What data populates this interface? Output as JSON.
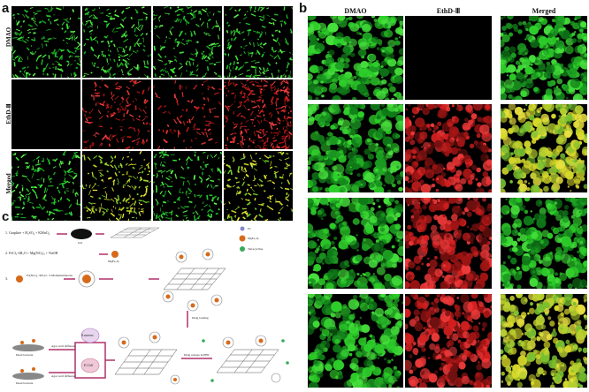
{
  "panel_a": {
    "letter": "a",
    "row_labels": [
      "DMAO",
      "EthD-Ⅲ",
      "Merged"
    ]
  },
  "panel_b": {
    "letter": "b",
    "column_labels": [
      "DMAO",
      "EthD-Ⅲ",
      "Merged"
    ]
  },
  "panel_c": {
    "letter": "c",
    "steps": [
      "1.  Graphite + H₂SO₄ + KMnO₄",
      "2.  FeCl₃·6H₂O + Mg(NO₃)₂ + NaOH",
      "3.",
      "Fe(NO₃)₃·9H₂O / 3-Methylimidazole"
    ],
    "labels": {
      "go": "GO",
      "mgfe2o4": "MgFe₂O₄",
      "legend_fe": "Fe",
      "legend_mgfe": "MgFe₂O₄",
      "legend_drug": "Tetracycline",
      "drug_loading": "Drug loading",
      "e_aureus": "S.aureus",
      "e_coli": "E.Coli",
      "agar1": "Agar well diffusion",
      "agar2": "Agar well diffusion",
      "dead1": "Dead bacteria",
      "dead2": "Dead bacteria",
      "release": "Drug release in PBS"
    }
  },
  "colors": {
    "green": "#2fd12a",
    "red": "#d42222",
    "yellow": "#c8d020",
    "magenta": "#b0306a"
  }
}
